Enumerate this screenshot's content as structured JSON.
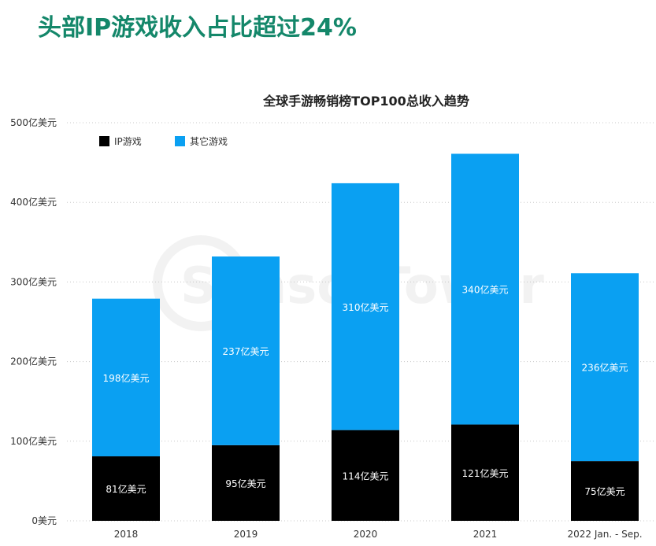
{
  "header": {
    "title": "头部IP游戏收入占比超过24%"
  },
  "chart_data": {
    "type": "bar",
    "stacked": true,
    "title": "全球手游畅销榜TOP100总收入趋势",
    "categories": [
      "2018",
      "2019",
      "2020",
      "2021",
      "2022 Jan. - Sep."
    ],
    "series": [
      {
        "name": "IP游戏",
        "color": "#000000",
        "values": [
          81,
          95,
          114,
          121,
          75
        ],
        "labels": [
          "81亿美元",
          "95亿美元",
          "114亿美元",
          "121亿美元",
          "75亿美元"
        ]
      },
      {
        "name": "其它游戏",
        "color": "#0aa0f2",
        "values": [
          198,
          237,
          310,
          340,
          236
        ],
        "labels": [
          "198亿美元",
          "237亿美元",
          "310亿美元",
          "340亿美元",
          "236亿美元"
        ]
      }
    ],
    "yticks": [
      0,
      100,
      200,
      300,
      400,
      500
    ],
    "ytick_labels": [
      "0美元",
      "100亿美元",
      "200亿美元",
      "300亿美元",
      "400亿美元",
      "500亿美元"
    ],
    "ylim": [
      0,
      500
    ],
    "grid": true,
    "legend": "top-left",
    "watermark": "SensorTower"
  }
}
